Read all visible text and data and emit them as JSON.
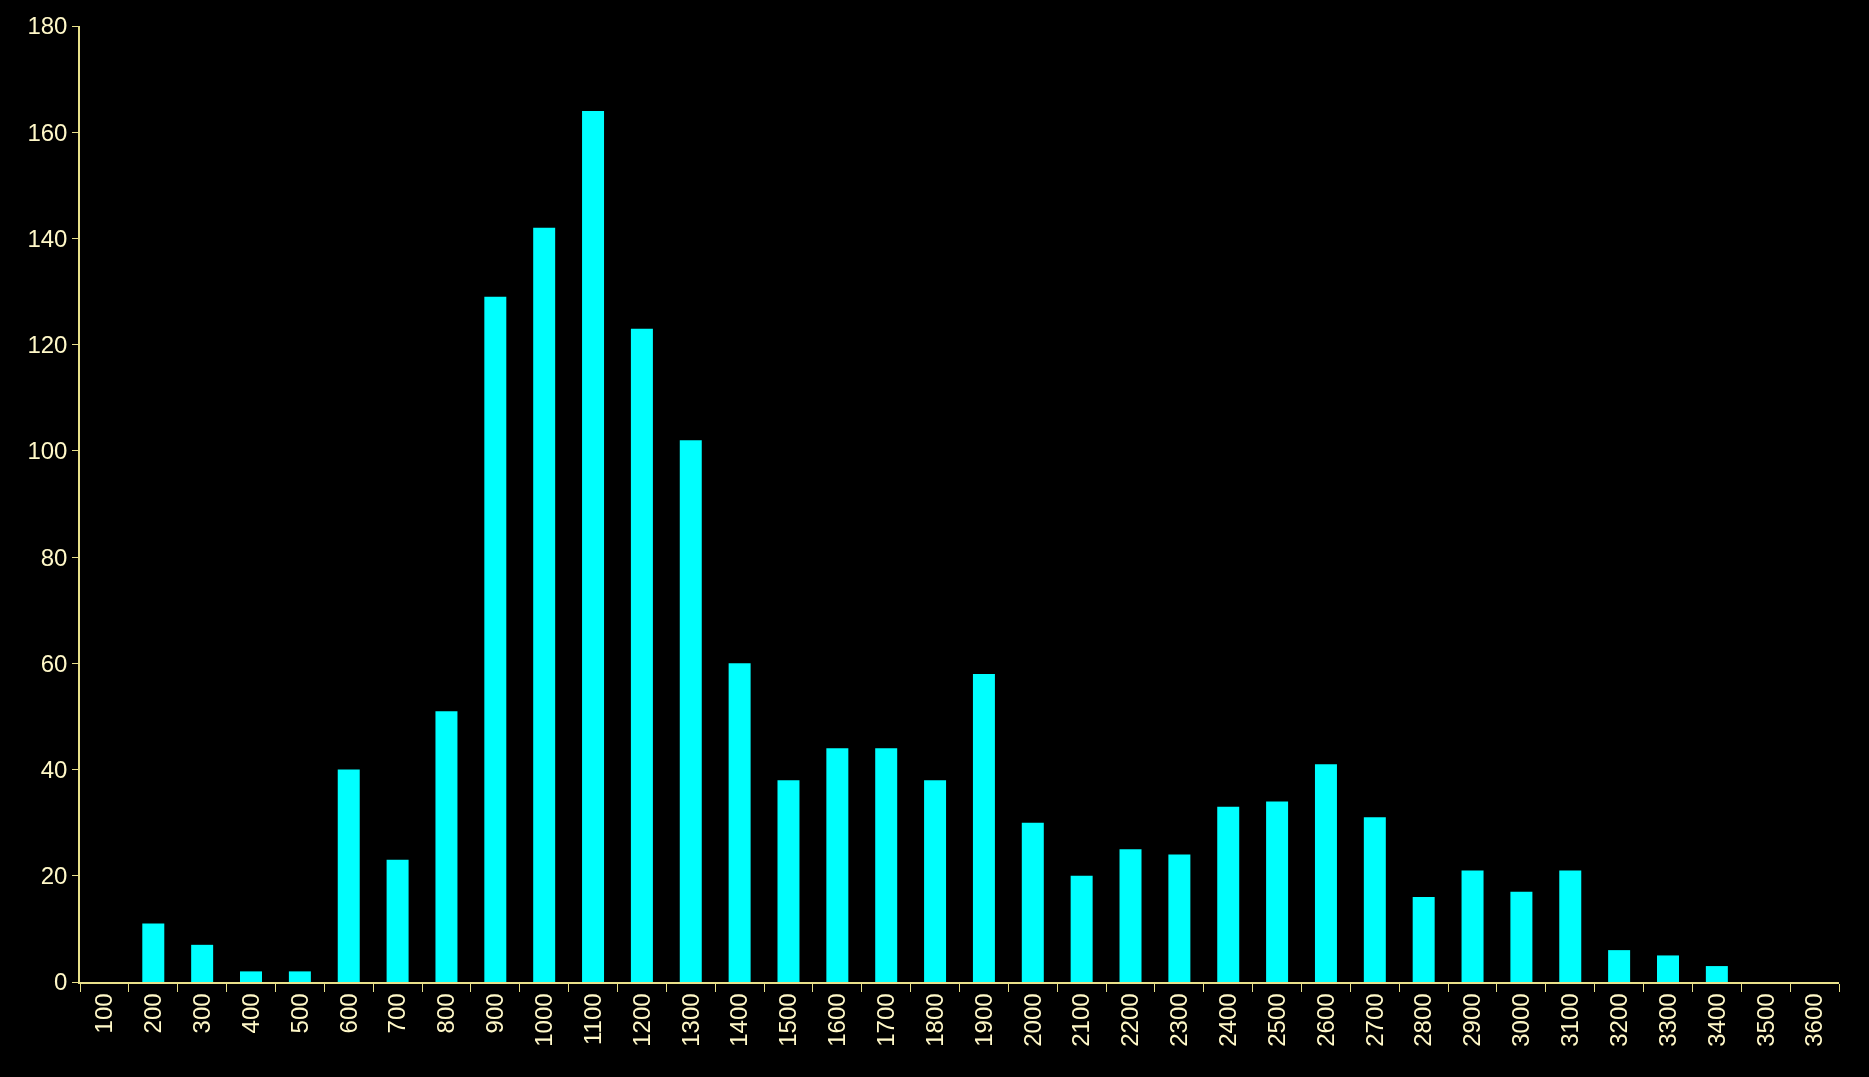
{
  "chart_data": {
    "type": "bar",
    "categories": [
      "100",
      "200",
      "300",
      "400",
      "500",
      "600",
      "700",
      "800",
      "900",
      "1000",
      "1100",
      "1200",
      "1300",
      "1400",
      "1500",
      "1600",
      "1700",
      "1800",
      "1900",
      "2000",
      "2100",
      "2200",
      "2300",
      "2400",
      "2500",
      "2600",
      "2700",
      "2800",
      "2900",
      "3000",
      "3100",
      "3200",
      "3300",
      "3400",
      "3500",
      "3600"
    ],
    "values": [
      0,
      11,
      7,
      2,
      2,
      40,
      23,
      51,
      129,
      142,
      164,
      123,
      102,
      60,
      38,
      44,
      44,
      38,
      58,
      30,
      20,
      25,
      24,
      33,
      34,
      41,
      31,
      16,
      21,
      17,
      21,
      6,
      5,
      3,
      0,
      0
    ],
    "color": "#00ffff",
    "ylim": [
      0,
      180
    ],
    "yticks": [
      0,
      20,
      40,
      60,
      80,
      100,
      120,
      140,
      160,
      180
    ],
    "grid": false,
    "legend": false
  }
}
